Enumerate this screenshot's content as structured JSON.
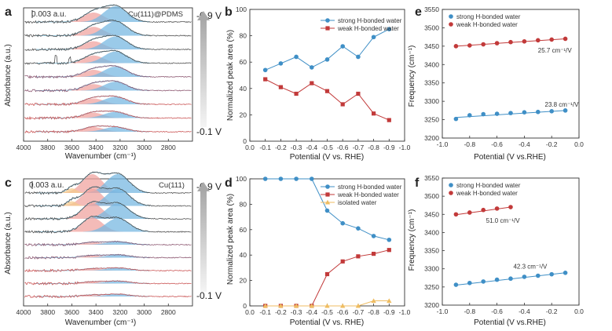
{
  "colors": {
    "strong": "#3f8fc6",
    "weak": "#c23a3a",
    "isolated": "#efbd62",
    "strongFill": "#78b8e2",
    "weakFill": "#f0a4a0",
    "isoFill": "#f4c98c",
    "envelope": "#9fd0e6"
  },
  "chart_data": [
    {
      "panel": "a",
      "type": "area",
      "title": "Cu(111)@PDMS",
      "scale_label": "0.003 a.u.",
      "xlabel": "Wavenumber (cm⁻¹)",
      "ylabel": "Absorbance (a.u.)",
      "xlim": [
        4000,
        2600
      ],
      "x_ticks": [
        4000,
        3800,
        3600,
        3400,
        3200,
        3000,
        2800
      ],
      "potential_top": "-0.9 V",
      "potential_bottom": "-0.1 V",
      "n_spectra": 9,
      "peaks": [
        {
          "name": "strong H-bonded water",
          "center": 3240
        },
        {
          "name": "weak H-bonded water",
          "center": 3420
        }
      ]
    },
    {
      "panel": "c",
      "type": "area",
      "title": "Cu(111)",
      "scale_label": "0.003 a.u.",
      "xlabel": "Wavenumber (cm⁻¹)",
      "ylabel": "Absorbance (a.u.)",
      "xlim": [
        4000,
        2600
      ],
      "x_ticks": [
        4000,
        3800,
        3600,
        3400,
        3200,
        3000,
        2800
      ],
      "potential_top": "-0.9 V",
      "potential_bottom": "-0.1 V",
      "n_spectra": 9,
      "peaks": [
        {
          "name": "strong H-bonded water",
          "center": 3220
        },
        {
          "name": "weak H-bonded water",
          "center": 3430
        },
        {
          "name": "isolated water",
          "center": 3600
        }
      ]
    },
    {
      "panel": "b",
      "type": "line",
      "xlabel": "Potential (V vs. RHE)",
      "ylabel": "Normalized peak area (%)",
      "x": [
        -0.1,
        -0.2,
        -0.3,
        -0.4,
        -0.5,
        -0.6,
        -0.7,
        -0.8,
        -0.9
      ],
      "x_ticks": [
        "0.0",
        "-0.1",
        "-0.2",
        "-0.3",
        "-0.4",
        "-0.5",
        "-0.6",
        "-0.7",
        "-0.8",
        "-0.9",
        "-1.0"
      ],
      "xlim": [
        0.0,
        -1.0
      ],
      "ylim": [
        0,
        100
      ],
      "y_ticks": [
        0,
        20,
        40,
        60,
        80,
        100
      ],
      "series": [
        {
          "name": "strong H-bonded water",
          "values": [
            54,
            59,
            64,
            56,
            62,
            72,
            64,
            79,
            85
          ]
        },
        {
          "name": "weak H-bonded water",
          "values": [
            47,
            41,
            36,
            44,
            38,
            28,
            36,
            21,
            16
          ]
        }
      ]
    },
    {
      "panel": "d",
      "type": "line",
      "xlabel": "Potential (V vs. RHE)",
      "ylabel": "Normalized peak area (%)",
      "x": [
        -0.1,
        -0.2,
        -0.3,
        -0.4,
        -0.5,
        -0.6,
        -0.7,
        -0.8,
        -0.9
      ],
      "x_ticks": [
        "0.0",
        "-0.1",
        "-0.2",
        "-0.3",
        "-0.4",
        "-0.5",
        "-0.6",
        "-0.7",
        "-0.8",
        "-0.9",
        "-1.0"
      ],
      "xlim": [
        0.0,
        -1.0
      ],
      "ylim": [
        0,
        100
      ],
      "y_ticks": [
        0,
        20,
        40,
        60,
        80,
        100
      ],
      "series": [
        {
          "name": "strong H-bonded water",
          "values": [
            100,
            100,
            100,
            100,
            75,
            65,
            61,
            55,
            52
          ]
        },
        {
          "name": "weak H-bonded water",
          "values": [
            0,
            0,
            0,
            0,
            25,
            35,
            39,
            41,
            44
          ]
        },
        {
          "name": "isolated water",
          "values": [
            0,
            0,
            0,
            0,
            0,
            0,
            0,
            4,
            4
          ]
        }
      ]
    },
    {
      "panel": "e",
      "type": "scatter",
      "xlabel": "Potential (V vs.RHE)",
      "ylabel": "Frequency (cm⁻¹)",
      "xlim": [
        -1.0,
        0.0
      ],
      "x_ticks": [
        "-1.0",
        "-0.8",
        "-0.6",
        "-0.4",
        "-0.2",
        "0.0"
      ],
      "ylim": [
        3200,
        3550
      ],
      "y_ticks": [
        3200,
        3250,
        3300,
        3350,
        3400,
        3450,
        3500,
        3550
      ],
      "series": [
        {
          "name": "strong H-bonded water",
          "x": [
            -0.9,
            -0.8,
            -0.7,
            -0.6,
            -0.5,
            -0.4,
            -0.3,
            -0.2,
            -0.1
          ],
          "values": [
            3252,
            3262,
            3265,
            3266,
            3268,
            3270,
            3271,
            3273,
            3275
          ],
          "fit": [
            3256,
            3275
          ],
          "slope_label": "23.8 cm⁻¹/V"
        },
        {
          "name": "weak H-bonded water",
          "x": [
            -0.9,
            -0.8,
            -0.7,
            -0.6,
            -0.5,
            -0.4,
            -0.3,
            -0.2,
            -0.1
          ],
          "values": [
            3450,
            3452,
            3455,
            3458,
            3461,
            3463,
            3466,
            3468,
            3470
          ],
          "fit": [
            3450,
            3470
          ],
          "slope_label": "25.7 cm⁻¹/V"
        }
      ]
    },
    {
      "panel": "f",
      "type": "scatter",
      "xlabel": "Potential (V vs.RHE)",
      "ylabel": "Frequency (cm⁻¹)",
      "xlim": [
        -1.0,
        0.0
      ],
      "x_ticks": [
        "-1.0",
        "-0.8",
        "-0.6",
        "-0.4",
        "-0.2",
        "0.0"
      ],
      "ylim": [
        3200,
        3550
      ],
      "y_ticks": [
        3200,
        3250,
        3300,
        3350,
        3400,
        3450,
        3500,
        3550
      ],
      "series": [
        {
          "name": "strong H-bonded water",
          "x": [
            -0.9,
            -0.8,
            -0.7,
            -0.6,
            -0.5,
            -0.4,
            -0.3,
            -0.2,
            -0.1
          ],
          "values": [
            3256,
            3261,
            3265,
            3270,
            3273,
            3278,
            3281,
            3285,
            3289
          ],
          "fit": [
            3255,
            3289
          ],
          "slope_label": "42.3 cm⁻¹/V"
        },
        {
          "name": "weak H-bonded water",
          "x": [
            -0.9,
            -0.8,
            -0.7,
            -0.6,
            -0.5
          ],
          "values": [
            3450,
            3455,
            3462,
            3466,
            3470
          ],
          "fit": [
            3449,
            3470
          ],
          "slope_label": "51.0 cm⁻¹/V"
        }
      ]
    }
  ]
}
